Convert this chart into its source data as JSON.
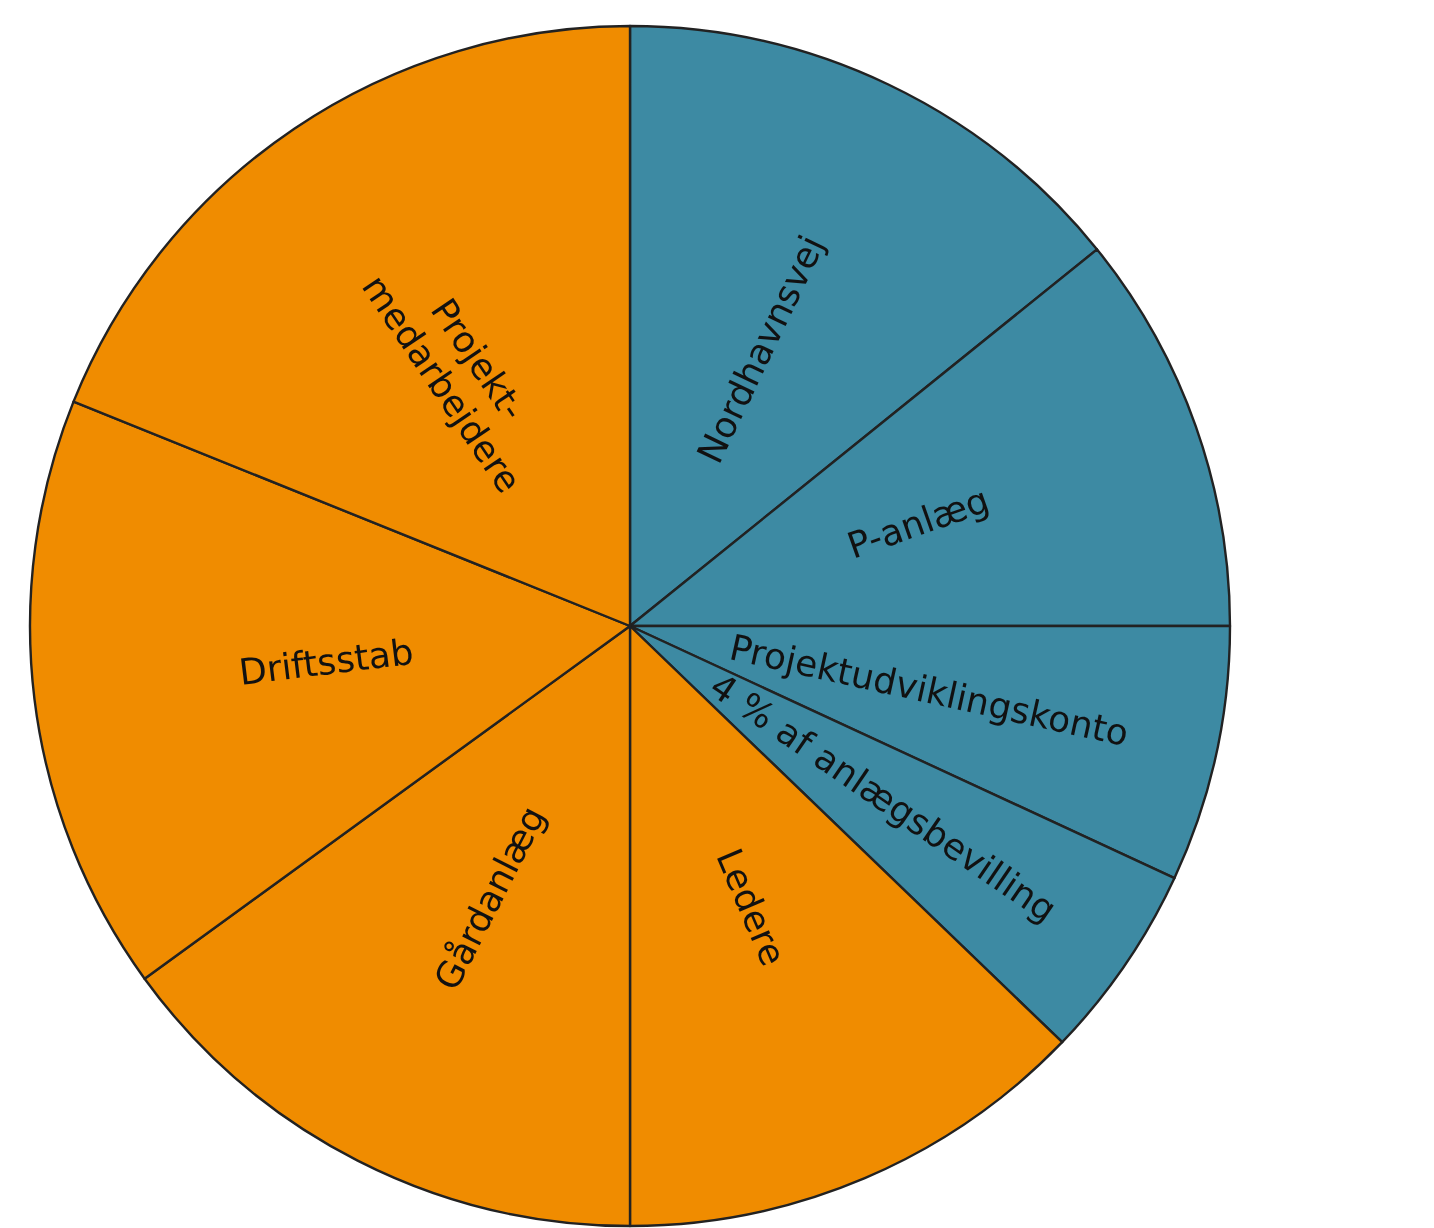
{
  "chart_data": {
    "type": "pie",
    "categories": [
      "Nordhavnsvej",
      "P-anlæg",
      "Projektudviklingskonto",
      "4 % af anlægsbevilling",
      "Ledere",
      "Gårdanlæg",
      "Driftsstab",
      "Projekt-\nmedarbejdere"
    ],
    "values": [
      14.2,
      10.8,
      6.9,
      5.3,
      12.8,
      15.0,
      16.1,
      18.9
    ],
    "colors": [
      "#3d8aa3",
      "#3d8aa3",
      "#3d8aa3",
      "#3d8aa3",
      "#f08c00",
      "#f08c00",
      "#f08c00",
      "#f08c00"
    ],
    "legend": false
  }
}
